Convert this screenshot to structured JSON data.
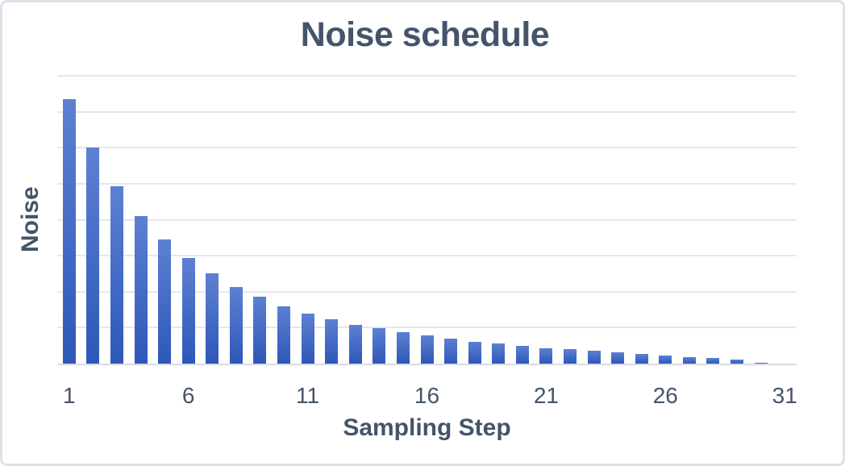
{
  "chart_data": {
    "type": "bar",
    "title": "Noise schedule",
    "xlabel": "Sampling Step",
    "ylabel": "Noise",
    "categories": [
      1,
      2,
      3,
      4,
      5,
      6,
      7,
      8,
      9,
      10,
      11,
      12,
      13,
      14,
      15,
      16,
      17,
      18,
      19,
      20,
      21,
      22,
      23,
      24,
      25,
      26,
      27,
      28,
      29,
      30,
      31
    ],
    "values": [
      14.7,
      12.0,
      9.85,
      8.2,
      6.9,
      5.85,
      5.0,
      4.25,
      3.7,
      3.2,
      2.8,
      2.45,
      2.17,
      1.96,
      1.73,
      1.55,
      1.37,
      1.23,
      1.1,
      0.97,
      0.87,
      0.8,
      0.72,
      0.63,
      0.52,
      0.44,
      0.37,
      0.3,
      0.22,
      0.03,
      0
    ],
    "x_tick_labels": [
      "1",
      "6",
      "11",
      "16",
      "21",
      "26",
      "31"
    ],
    "x_tick_positions": [
      1,
      6,
      11,
      16,
      21,
      26,
      31
    ],
    "ylim": [
      0,
      16
    ],
    "y_gridline_interval": 2,
    "y_tick_labels_shown": false,
    "grid": "horizontal",
    "legend": false,
    "colors": {
      "bar_gradient_top": "#5d80d3",
      "bar_gradient_bottom": "#2d57b8",
      "text": "#44546A",
      "gridline": "#e3e7ee",
      "axis_line": "#d6dbe3",
      "frame_border": "#dde2e9",
      "background": "#ffffff"
    }
  }
}
